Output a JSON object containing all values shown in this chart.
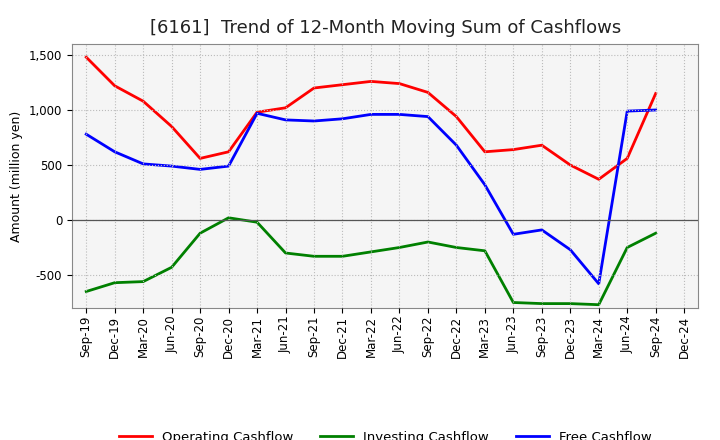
{
  "title": "[6161]  Trend of 12-Month Moving Sum of Cashflows",
  "ylabel": "Amount (million yen)",
  "x_labels": [
    "Sep-19",
    "Dec-19",
    "Mar-20",
    "Jun-20",
    "Sep-20",
    "Dec-20",
    "Mar-21",
    "Jun-21",
    "Sep-21",
    "Dec-21",
    "Mar-22",
    "Jun-22",
    "Sep-22",
    "Dec-22",
    "Mar-23",
    "Jun-23",
    "Sep-23",
    "Dec-23",
    "Mar-24",
    "Jun-24",
    "Sep-24",
    "Dec-24"
  ],
  "operating": [
    1480,
    1220,
    1080,
    850,
    560,
    620,
    980,
    1020,
    1200,
    1230,
    1260,
    1240,
    1160,
    940,
    620,
    640,
    680,
    500,
    370,
    560,
    1150,
    null
  ],
  "investing": [
    -650,
    -570,
    -560,
    -430,
    -120,
    20,
    -20,
    -300,
    -330,
    -330,
    -290,
    -250,
    -200,
    -250,
    -280,
    -750,
    -760,
    -760,
    -770,
    -250,
    -120,
    null
  ],
  "free": [
    780,
    620,
    510,
    490,
    460,
    490,
    970,
    910,
    900,
    920,
    960,
    960,
    940,
    680,
    320,
    -130,
    -90,
    -270,
    -580,
    990,
    1000,
    null
  ],
  "ylim": [
    -800,
    1600
  ],
  "yticks": [
    -500,
    0,
    500,
    1000,
    1500
  ],
  "colors": {
    "operating": "#ff0000",
    "investing": "#008000",
    "free": "#0000ff"
  },
  "bg_color": "#ffffff",
  "plot_bg_color": "#f5f5f5",
  "grid_color": "#bbbbbb",
  "line_width": 2.0,
  "title_fontsize": 13,
  "axis_label_fontsize": 9,
  "tick_fontsize": 8.5,
  "legend_fontsize": 9.5
}
